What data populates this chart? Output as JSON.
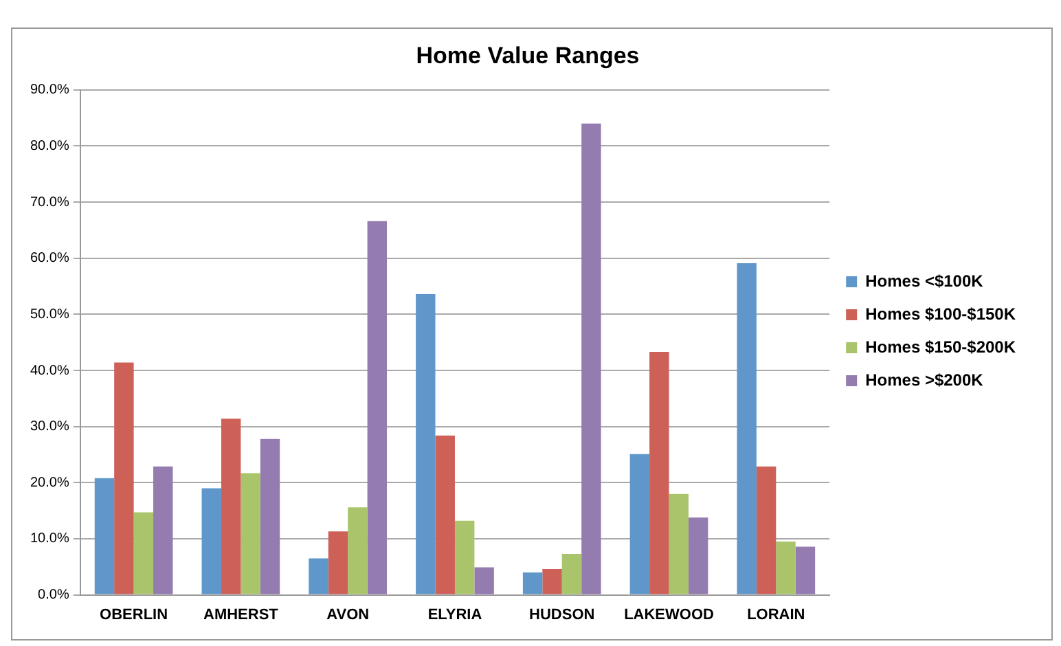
{
  "chart_data": {
    "type": "bar",
    "title": "Home Value Ranges",
    "categories": [
      "OBERLIN",
      "AMHERST",
      "AVON",
      "ELYRIA",
      "HUDSON",
      "LAKEWOOD",
      "LORAIN"
    ],
    "series": [
      {
        "name": "Homes <$100K",
        "color": "#6097cb",
        "values": [
          20.8,
          19.0,
          6.5,
          53.6,
          4.0,
          25.1,
          59.1
        ]
      },
      {
        "name": "Homes $100-$150K",
        "color": "#cd6158",
        "values": [
          41.4,
          31.4,
          11.3,
          28.4,
          4.6,
          43.3,
          22.9
        ]
      },
      {
        "name": "Homes $150-$200K",
        "color": "#a9c46a",
        "values": [
          14.7,
          21.7,
          15.6,
          13.2,
          7.3,
          18.0,
          9.5
        ]
      },
      {
        "name": "Homes >$200K",
        "color": "#947cb0",
        "values": [
          22.9,
          27.8,
          66.6,
          4.9,
          84.0,
          13.8,
          8.6
        ]
      }
    ],
    "ylim": [
      0,
      90
    ],
    "yticks": [
      {
        "value": 0,
        "label": "0.0%"
      },
      {
        "value": 10,
        "label": "10.0%"
      },
      {
        "value": 20,
        "label": "20.0%"
      },
      {
        "value": 30,
        "label": "30.0%"
      },
      {
        "value": 40,
        "label": "40.0%"
      },
      {
        "value": 50,
        "label": "50.0%"
      },
      {
        "value": 60,
        "label": "60.0%"
      },
      {
        "value": 70,
        "label": "70.0%"
      },
      {
        "value": 80,
        "label": "80.0%"
      },
      {
        "value": 90,
        "label": "90.0%"
      }
    ],
    "grid": "y",
    "legend": "right"
  }
}
